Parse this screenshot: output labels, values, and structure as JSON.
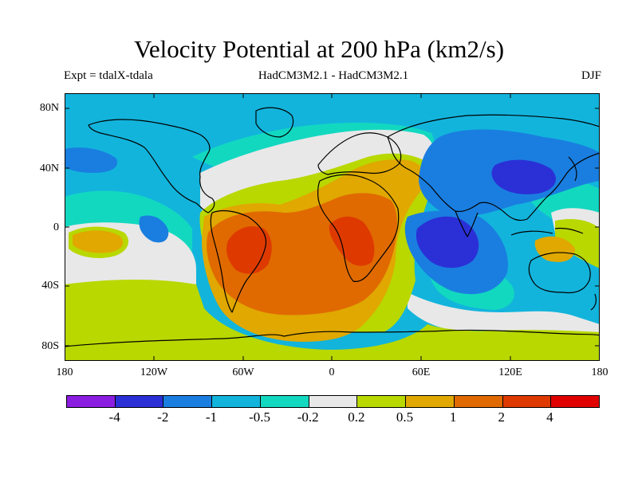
{
  "title": "Velocity Potential at 200 hPa (km2/s)",
  "subtitle_left": "Expt = tdalX-tdala",
  "subtitle_center": "HadCM3M2.1 - HadCM3M2.1",
  "subtitle_right": "DJF",
  "lat_labels": [
    "80N",
    "40N",
    "0",
    "40S",
    "80S"
  ],
  "lon_labels": [
    "180",
    "120W",
    "60W",
    "0",
    "60E",
    "120E",
    "180"
  ],
  "colorbar": {
    "labels": [
      "-4",
      "-2",
      "-1",
      "-0.5",
      "-0.2",
      "0.2",
      "0.5",
      "1",
      "2",
      "4"
    ],
    "colors": [
      "#8a1de0",
      "#2a30d6",
      "#1a7ee0",
      "#12b4dc",
      "#12d8c0",
      "#e8e8e8",
      "#b8d800",
      "#e0a800",
      "#e06a00",
      "#de3a00",
      "#e00000"
    ]
  },
  "colors": {
    "ocean_background": "#12b4dc",
    "coastline": "#000000"
  }
}
